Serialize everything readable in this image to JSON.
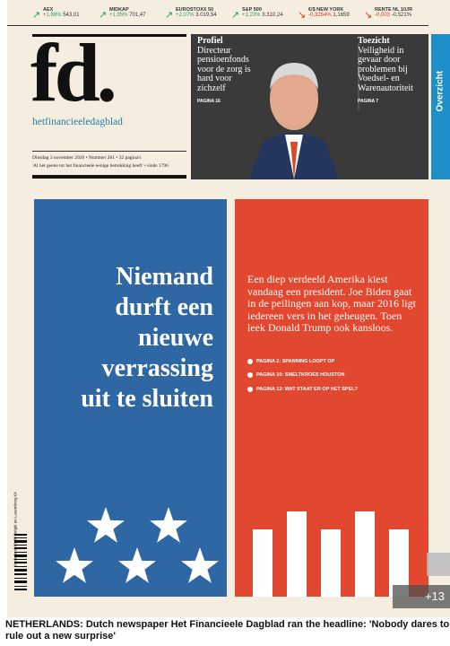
{
  "ticker": [
    {
      "name": "AEX",
      "change": "+1,88%",
      "value": "543,01"
    },
    {
      "name": "MIDKAP",
      "change": "+1,95%",
      "value": "701,47"
    },
    {
      "name": "EUROSTOXX 50",
      "change": "+2,07%",
      "value": "3.019,54"
    },
    {
      "name": "S&P 500",
      "change": "+1,23%",
      "value": "3.310,24"
    },
    {
      "name": "€/$ NEW YORK",
      "change": "-0,3254%",
      "value": "1,1659"
    },
    {
      "name": "RENTE NL 10JR",
      "change": "-0,003",
      "value": "-0,521%"
    }
  ],
  "masthead": {
    "logo": "fd.",
    "subtitle": "hetfinancieeledagblad",
    "dateline": "Dinsdag 3 november 2020 • Nummer 261 • 32 pagina's",
    "motto": "'Al het geene tot het financieele eenige betrekking heeft' • sinds 1796"
  },
  "teasers": [
    {
      "label": "Profiel",
      "text": "Directeur pensioenfonds voor de zorg is hard voor zichzelf",
      "page": "PAGINA 16"
    },
    {
      "label": "Toezicht",
      "text": "Veiligheid in gevaar door problemen bij Voedsel- en Warenautoriteit",
      "page": "PAGINA 7"
    }
  ],
  "overview_tab": "Overzicht",
  "headline": [
    "Niemand",
    "durft een",
    "nieuwe",
    "verrassing",
    "uit te sluiten"
  ],
  "lead": "Een diep verdeeld Amerika kiest vandaag een president. Joe Biden gaat in de peilingen aan kop, maar 2016 ligt iedereen vers in het geheugen. Toen leek Donald Trump ook kansloos.",
  "links": [
    "PAGINA 2: SPANNING LOOPT OP",
    "PAGINA 10: SMELTKROES HOUSTON",
    "PAGINA 12: WAT STAAT ER OP HET SPEL?"
  ],
  "price": "Nederland €3,30 België en Luxemburg €4",
  "photo_count": "+13",
  "caption": "NETHERLANDS: Dutch newspaper Het Financieele Dagblad ran the headline: 'Nobody dares to rule out a new surprise'"
}
